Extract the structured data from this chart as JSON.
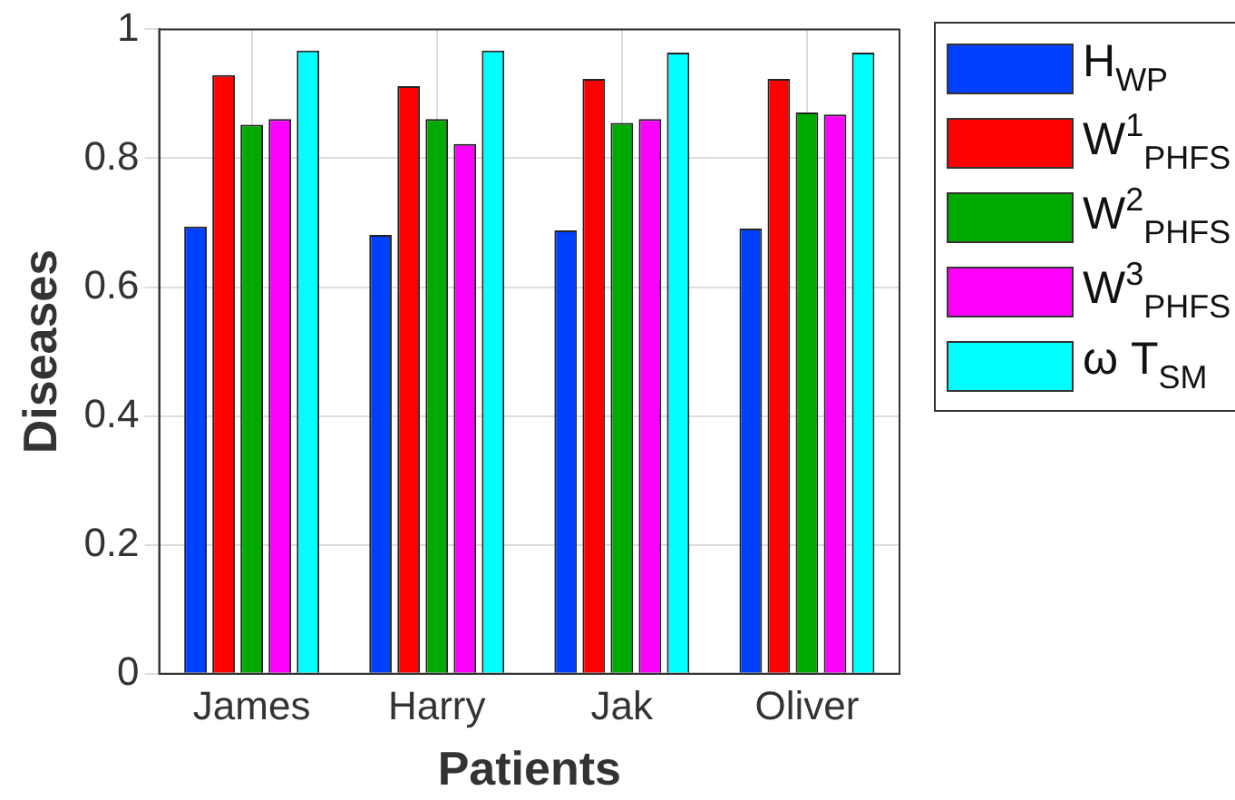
{
  "chart_data": {
    "type": "bar",
    "xlabel": "Patients",
    "ylabel": "Diseases",
    "categories": [
      "James",
      "Harry",
      "Jak",
      "Oliver"
    ],
    "series": [
      {
        "name": "H$_{WP}$",
        "color": "#0040ff",
        "values": [
          0.694,
          0.681,
          0.688,
          0.691
        ]
      },
      {
        "name": "W$^{1}$$_{PHFS}$",
        "color": "#ff0000",
        "values": [
          0.929,
          0.912,
          0.923,
          0.923
        ]
      },
      {
        "name": "W$^{2}$$_{PHFS}$",
        "color": "#00aa00",
        "values": [
          0.852,
          0.861,
          0.855,
          0.871
        ]
      },
      {
        "name": "W$^{3}$$_{PHFS}$",
        "color": "#ff00ff",
        "values": [
          0.861,
          0.822,
          0.861,
          0.868
        ]
      },
      {
        "name": "ω T$_{SM}$",
        "color": "#00ffff",
        "values": [
          0.967,
          0.967,
          0.964,
          0.964
        ]
      }
    ],
    "ylim": [
      0,
      1
    ],
    "yticks": [
      0,
      0.2,
      0.4,
      0.6,
      0.8,
      1
    ],
    "grid": true,
    "legend": "right"
  }
}
